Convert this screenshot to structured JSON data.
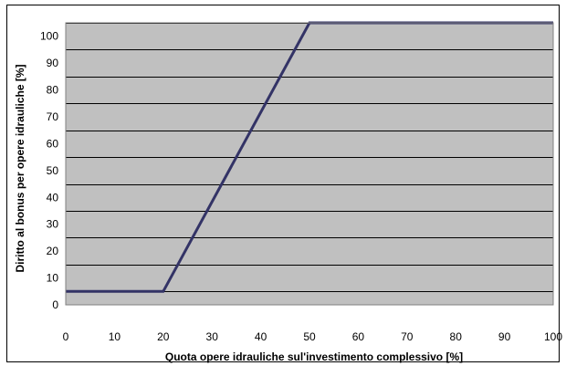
{
  "chart_data": {
    "type": "line",
    "xlabel": "Quota opere idrauliche sul'investimento complessivo [%]",
    "ylabel": "Diritto al bonus per opere idrauliche [%]",
    "xlim": [
      0,
      100
    ],
    "ylim": [
      0,
      105
    ],
    "x_ticks": [
      0,
      10,
      20,
      30,
      40,
      50,
      60,
      70,
      80,
      90,
      100
    ],
    "y_ticks": [
      0,
      10,
      20,
      30,
      40,
      50,
      60,
      70,
      80,
      90,
      100
    ],
    "grid": "horizontal",
    "legend": "none",
    "series": [
      {
        "x": [
          0,
          20,
          50,
          100
        ],
        "y": [
          5,
          5,
          105,
          105
        ]
      }
    ],
    "colors": {
      "plot_background": "#c0c0c0",
      "line": "#333366",
      "grid": "#000000"
    }
  }
}
